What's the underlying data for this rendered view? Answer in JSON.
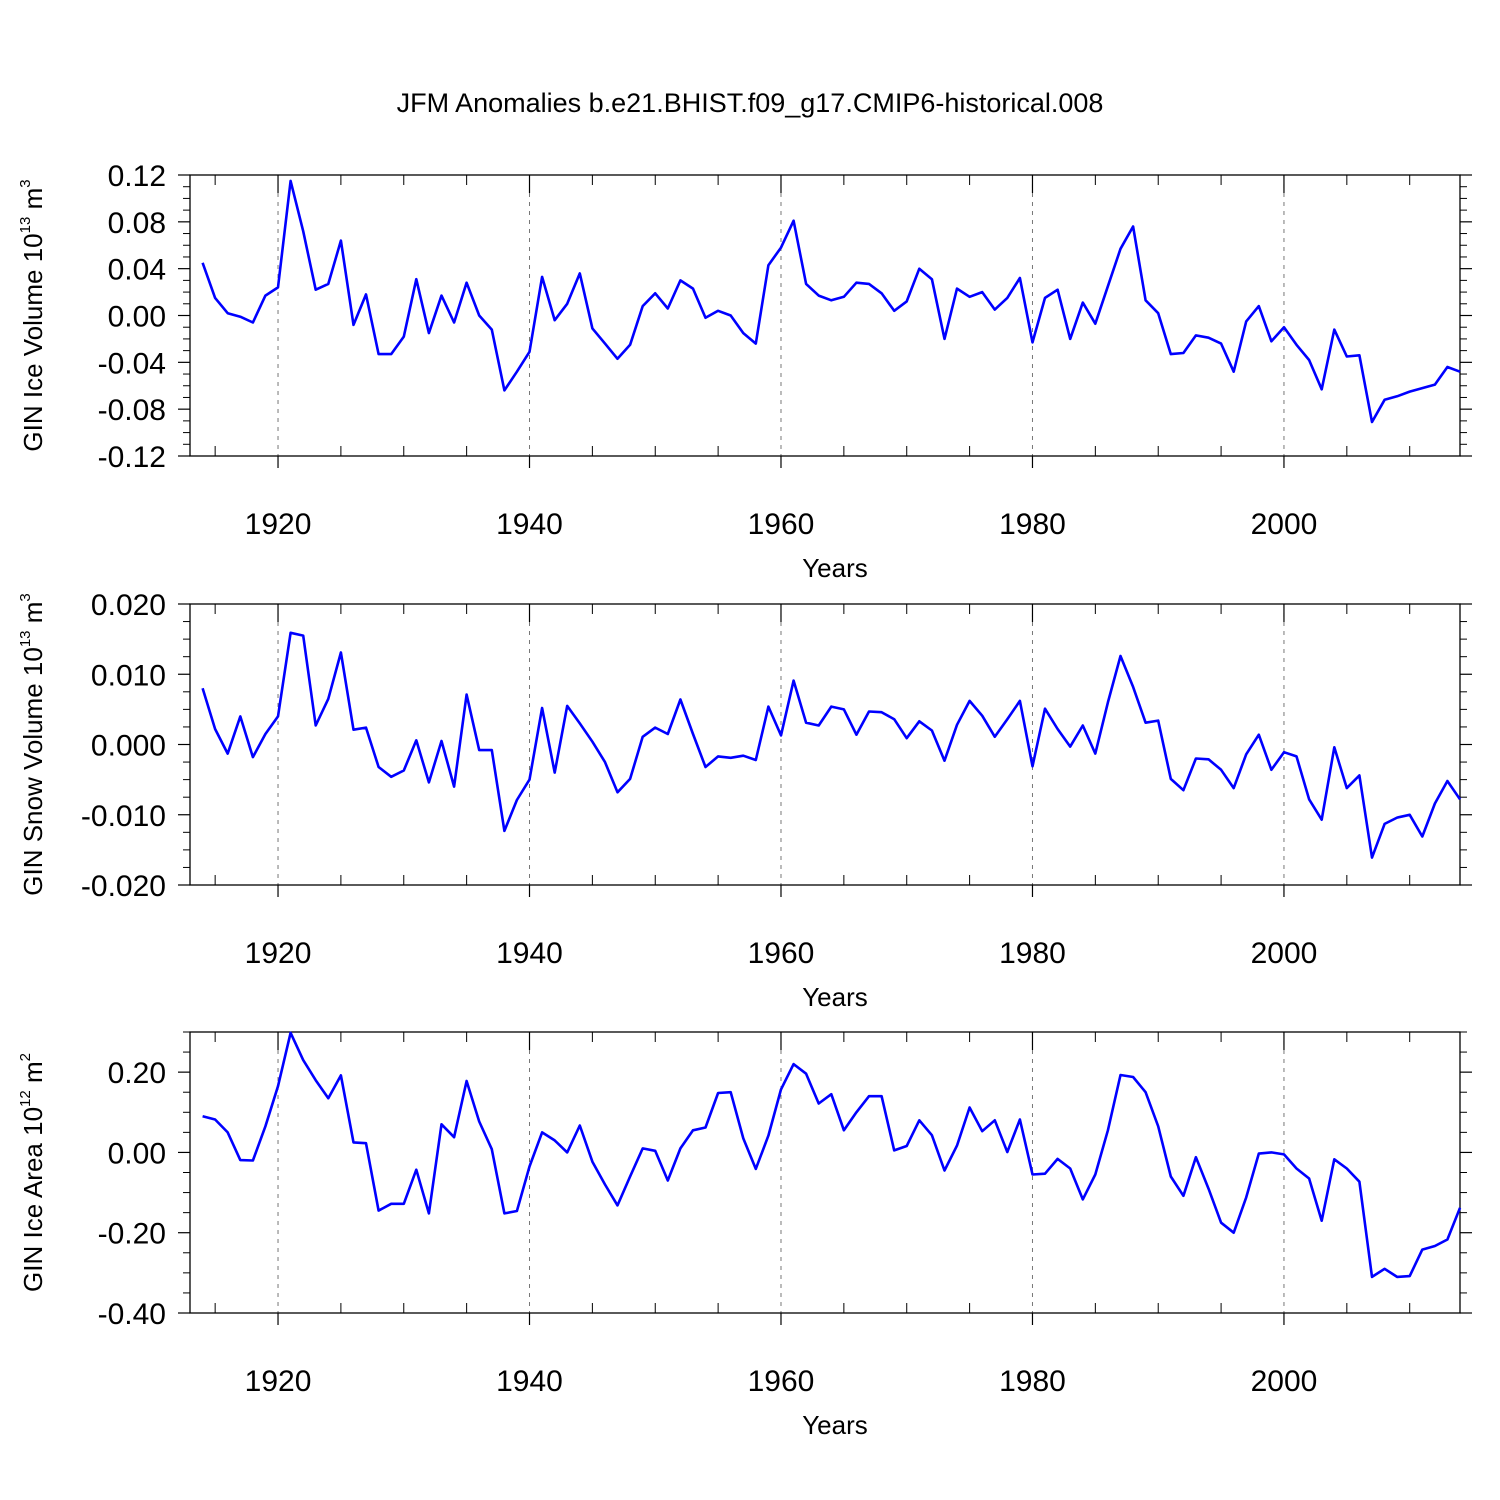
{
  "figure": {
    "title": "JFM Anomalies b.e21.BHIST.f09_g17.CMIP6-historical.008"
  },
  "chart_data": [
    {
      "type": "line",
      "ylabel": "GIN Ice Volume 10¹³ m³",
      "ylabel_parts": {
        "base": "GIN Ice Volume 10",
        "exp1": "13",
        "mid": " m",
        "exp2": "3"
      },
      "xlabel": "Years",
      "xlim": [
        1913,
        2014
      ],
      "ylim": [
        -0.12,
        0.12
      ],
      "yticks": [
        -0.12,
        -0.08,
        -0.04,
        0.0,
        0.04,
        0.08,
        0.12
      ],
      "yticklabels": [
        "-0.12",
        "-0.08",
        "-0.04",
        "0.00",
        "0.04",
        "0.08",
        "0.12"
      ],
      "xticks": [
        1920,
        1940,
        1960,
        1980,
        2000
      ],
      "xticklabels": [
        "1920",
        "1940",
        "1960",
        "1980",
        "2000"
      ],
      "grid": "vertical dashed at major x ticks",
      "color": "#0000ff",
      "x_start": 1914,
      "series": [
        {
          "values": [
            0.045,
            0.015,
            0.002,
            -0.001,
            -0.006,
            0.017,
            0.024,
            0.115,
            0.072,
            0.022,
            0.027,
            0.064,
            -0.008,
            0.018,
            -0.033,
            -0.033,
            -0.018,
            0.031,
            -0.015,
            0.017,
            -0.006,
            0.028,
            0.0,
            -0.012,
            -0.064,
            -0.048,
            -0.031,
            0.033,
            -0.004,
            0.01,
            0.036,
            -0.011,
            -0.024,
            -0.037,
            -0.025,
            0.008,
            0.019,
            0.006,
            0.03,
            0.023,
            -0.002,
            0.004,
            0.0,
            -0.015,
            -0.024,
            0.043,
            0.058,
            0.081,
            0.027,
            0.017,
            0.013,
            0.016,
            0.028,
            0.027,
            0.019,
            0.004,
            0.012,
            0.04,
            0.031,
            -0.02,
            0.023,
            0.016,
            0.02,
            0.005,
            0.015,
            0.032,
            -0.023,
            0.015,
            0.022,
            -0.02,
            0.011,
            -0.007,
            0.025,
            0.057,
            0.076,
            0.013,
            0.002,
            -0.033,
            -0.032,
            -0.017,
            -0.019,
            -0.024,
            -0.048,
            -0.005,
            0.008,
            -0.022,
            -0.01,
            -0.025,
            -0.038,
            -0.063,
            -0.012,
            -0.035,
            -0.034,
            -0.091,
            -0.072,
            -0.069,
            -0.065,
            -0.062,
            -0.059,
            -0.044,
            -0.048
          ]
        }
      ]
    },
    {
      "type": "line",
      "ylabel": "GIN Snow Volume 10¹³ m³",
      "ylabel_parts": {
        "base": "GIN Snow Volume 10",
        "exp1": "13",
        "mid": " m",
        "exp2": "3"
      },
      "xlabel": "Years",
      "xlim": [
        1913,
        2014
      ],
      "ylim": [
        -0.02,
        0.02
      ],
      "yticks": [
        -0.02,
        -0.01,
        0.0,
        0.01,
        0.02
      ],
      "yticklabels": [
        "-0.020",
        "-0.010",
        "0.000",
        "0.010",
        "0.020"
      ],
      "xticks": [
        1920,
        1940,
        1960,
        1980,
        2000
      ],
      "xticklabels": [
        "1920",
        "1940",
        "1960",
        "1980",
        "2000"
      ],
      "grid": "vertical dashed at major x ticks",
      "color": "#0000ff",
      "x_start": 1914,
      "series": [
        {
          "values": [
            0.008,
            0.0022,
            -0.0013,
            0.004,
            -0.0018,
            0.0015,
            0.004,
            0.0159,
            0.0155,
            0.0027,
            0.0065,
            0.0131,
            0.0021,
            0.0024,
            -0.0032,
            -0.0046,
            -0.0037,
            0.0006,
            -0.0054,
            0.0005,
            -0.006,
            0.0071,
            -0.0008,
            -0.0008,
            -0.0123,
            -0.0079,
            -0.005,
            0.0052,
            -0.004,
            0.0055,
            0.003,
            0.0004,
            -0.0025,
            -0.0068,
            -0.0049,
            0.0011,
            0.0024,
            0.0015,
            0.0064,
            0.0015,
            -0.0032,
            -0.0017,
            -0.0019,
            -0.0016,
            -0.0022,
            0.0054,
            0.0013,
            0.0091,
            0.0031,
            0.0027,
            0.0054,
            0.005,
            0.0014,
            0.0047,
            0.0046,
            0.0036,
            0.0009,
            0.0033,
            0.002,
            -0.0023,
            0.0028,
            0.0062,
            0.0041,
            0.0011,
            0.0036,
            0.0062,
            -0.0031,
            0.0051,
            0.0022,
            -0.0003,
            0.0027,
            -0.0013,
            0.006,
            0.0126,
            0.0082,
            0.0031,
            0.0034,
            -0.0049,
            -0.0065,
            -0.002,
            -0.0021,
            -0.0036,
            -0.0062,
            -0.0014,
            0.0014,
            -0.0036,
            -0.0011,
            -0.0017,
            -0.0078,
            -0.0107,
            -0.0004,
            -0.0062,
            -0.0044,
            -0.0161,
            -0.0113,
            -0.0104,
            -0.01,
            -0.0131,
            -0.0084,
            -0.0052,
            -0.0078
          ]
        }
      ]
    },
    {
      "type": "line",
      "ylabel": "GIN Ice Area 10¹² m²",
      "ylabel_parts": {
        "base": "GIN Ice Area 10",
        "exp1": "12",
        "mid": " m",
        "exp2": "2"
      },
      "xlabel": "Years",
      "xlim": [
        1913,
        2014
      ],
      "ylim": [
        -0.4,
        0.3
      ],
      "yticks": [
        -0.4,
        -0.2,
        0.0,
        0.2
      ],
      "yticklabels": [
        "-0.40",
        "-0.20",
        "0.00",
        "0.20"
      ],
      "xticks": [
        1920,
        1940,
        1960,
        1980,
        2000
      ],
      "xticklabels": [
        "1920",
        "1940",
        "1960",
        "1980",
        "2000"
      ],
      "grid": "vertical dashed at major x ticks",
      "color": "#0000ff",
      "x_start": 1914,
      "series": [
        {
          "values": [
            0.09,
            0.082,
            0.05,
            -0.019,
            -0.02,
            0.065,
            0.165,
            0.298,
            0.23,
            0.18,
            0.135,
            0.192,
            0.025,
            0.023,
            -0.145,
            -0.128,
            -0.128,
            -0.043,
            -0.152,
            0.07,
            0.038,
            0.178,
            0.077,
            0.008,
            -0.152,
            -0.146,
            -0.035,
            0.05,
            0.03,
            0.0,
            0.067,
            -0.023,
            -0.08,
            -0.132,
            -0.06,
            0.01,
            0.004,
            -0.07,
            0.01,
            0.055,
            0.062,
            0.148,
            0.15,
            0.035,
            -0.041,
            0.042,
            0.157,
            0.22,
            0.196,
            0.122,
            0.145,
            0.055,
            0.1,
            0.14,
            0.14,
            0.005,
            0.016,
            0.08,
            0.043,
            -0.045,
            0.017,
            0.112,
            0.053,
            0.08,
            0.001,
            0.082,
            -0.055,
            -0.053,
            -0.016,
            -0.04,
            -0.117,
            -0.055,
            0.055,
            0.193,
            0.188,
            0.15,
            0.065,
            -0.06,
            -0.108,
            -0.012,
            -0.09,
            -0.175,
            -0.2,
            -0.112,
            -0.003,
            0.0,
            -0.005,
            -0.04,
            -0.065,
            -0.17,
            -0.017,
            -0.04,
            -0.073,
            -0.31,
            -0.29,
            -0.31,
            -0.308,
            -0.242,
            -0.233,
            -0.217,
            -0.138
          ]
        }
      ]
    }
  ]
}
